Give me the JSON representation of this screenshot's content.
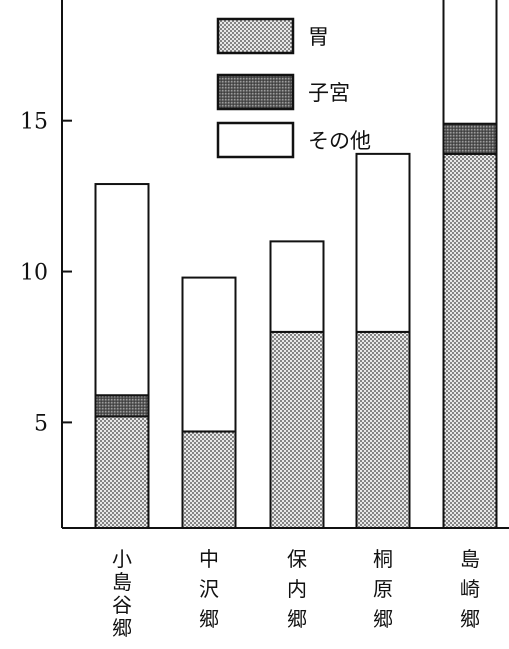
{
  "chart_data": {
    "type": "bar",
    "stacked": true,
    "title": "",
    "xlabel": "",
    "ylabel": "",
    "categories": [
      "小島谷郷",
      "中沢郷",
      "保内郷",
      "桐原郷",
      "島崎郷"
    ],
    "series": [
      {
        "name": "胃",
        "values": [
          3.7,
          3.2,
          6.5,
          6.5,
          12.4
        ],
        "pattern": "fine-dots"
      },
      {
        "name": "子宮",
        "values": [
          0.7,
          0,
          0,
          0,
          1.0
        ],
        "pattern": "dense-stipple"
      },
      {
        "name": "その他",
        "values": [
          7.0,
          5.1,
          3.0,
          5.9,
          5.3
        ],
        "pattern": "blank"
      }
    ],
    "ylim": [
      1.5,
      19
    ],
    "yticks": [
      5,
      10,
      15
    ],
    "ytick_labels": [
      "5",
      "10",
      "15"
    ],
    "grid": false,
    "legend_position": "top-right",
    "colors": {
      "ink": "#111111",
      "background": "#ffffff"
    }
  }
}
